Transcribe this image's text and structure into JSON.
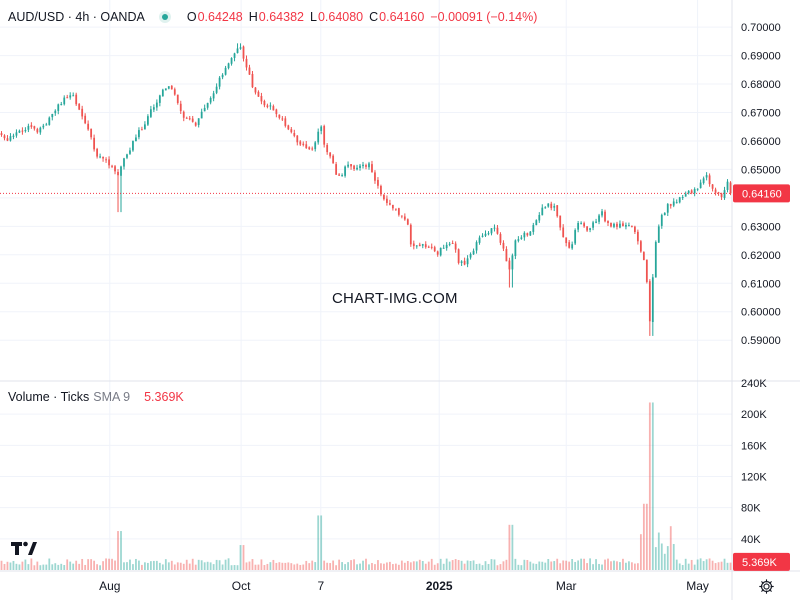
{
  "header": {
    "symbol": "AUD/USD · 4h · OANDA",
    "open_label": "O",
    "open": "0.64248",
    "high_label": "H",
    "high": "0.64382",
    "low_label": "L",
    "low": "0.64080",
    "close_label": "C",
    "close": "0.64160",
    "change": "−0.00091 (−0.14%)"
  },
  "volume_legend": {
    "title": "Volume · Ticks",
    "sma": "SMA 9",
    "value": "5.369K"
  },
  "watermark": "CHART-IMG.COM",
  "colors": {
    "up": "#26a69a",
    "down": "#ef5350",
    "grid": "#f0f3fa",
    "price_tag": "#f23645",
    "accent_text": "#f23645"
  },
  "icons": {
    "logo": "tradingview-logo-icon",
    "settings": "gear-icon"
  },
  "chart_data": [
    {
      "type": "candlestick",
      "title": "AUD/USD · 4h · OANDA",
      "y_ticks": [
        "0.70000",
        "0.69000",
        "0.68000",
        "0.67000",
        "0.66000",
        "0.65000",
        "0.64000",
        "0.63000",
        "0.62000",
        "0.61000",
        "0.60000",
        "0.59000"
      ],
      "ylim": [
        0.5855,
        0.7025
      ],
      "last_price": 0.6416,
      "last_price_label": "0.64160",
      "x_tick_labels": [
        "Aug",
        "Oct",
        "7",
        "2025",
        "Mar",
        "May"
      ],
      "x_tick_dates": [
        "2024-08-01",
        "2024-10-01",
        "2024-11-07",
        "2025-01-01",
        "2025-03-01",
        "2025-05-01"
      ],
      "x_range": [
        "2024-06-11",
        "2025-05-17"
      ],
      "grid": true,
      "path_points": [
        [
          "2024-06-11",
          0.6625
        ],
        [
          "2024-06-14",
          0.6605
        ],
        [
          "2024-06-20",
          0.6635
        ],
        [
          "2024-06-25",
          0.6655
        ],
        [
          "2024-06-28",
          0.663
        ],
        [
          "2024-07-03",
          0.6665
        ],
        [
          "2024-07-08",
          0.6725
        ],
        [
          "2024-07-11",
          0.675
        ],
        [
          "2024-07-15",
          0.676
        ],
        [
          "2024-07-18",
          0.6705
        ],
        [
          "2024-07-22",
          0.664
        ],
        [
          "2024-07-26",
          0.6545
        ],
        [
          "2024-07-30",
          0.6535
        ],
        [
          "2024-08-02",
          0.651
        ],
        [
          "2024-08-05",
          0.6475
        ],
        [
          "2024-08-07",
          0.653
        ],
        [
          "2024-08-10",
          0.656
        ],
        [
          "2024-08-13",
          0.662
        ],
        [
          "2024-08-16",
          0.6645
        ],
        [
          "2024-08-20",
          0.671
        ],
        [
          "2024-08-23",
          0.674
        ],
        [
          "2024-08-27",
          0.679
        ],
        [
          "2024-08-30",
          0.678
        ],
        [
          "2024-09-03",
          0.67
        ],
        [
          "2024-09-06",
          0.6675
        ],
        [
          "2024-09-10",
          0.666
        ],
        [
          "2024-09-13",
          0.671
        ],
        [
          "2024-09-16",
          0.674
        ],
        [
          "2024-09-20",
          0.6805
        ],
        [
          "2024-09-24",
          0.6855
        ],
        [
          "2024-09-27",
          0.69
        ],
        [
          "2024-09-30",
          0.6935
        ],
        [
          "2024-10-03",
          0.688
        ],
        [
          "2024-10-07",
          0.677
        ],
        [
          "2024-10-10",
          0.6745
        ],
        [
          "2024-10-14",
          0.672
        ],
        [
          "2024-10-17",
          0.6705
        ],
        [
          "2024-10-21",
          0.6665
        ],
        [
          "2024-10-24",
          0.6625
        ],
        [
          "2024-10-28",
          0.6595
        ],
        [
          "2024-11-01",
          0.6575
        ],
        [
          "2024-11-04",
          0.658
        ],
        [
          "2024-11-07",
          0.6665
        ],
        [
          "2024-11-08",
          0.6595
        ],
        [
          "2024-11-12",
          0.654
        ],
        [
          "2024-11-15",
          0.647
        ],
        [
          "2024-11-19",
          0.651
        ],
        [
          "2024-11-22",
          0.651
        ],
        [
          "2024-11-26",
          0.651
        ],
        [
          "2024-11-29",
          0.652
        ],
        [
          "2024-12-03",
          0.645
        ],
        [
          "2024-12-06",
          0.64
        ],
        [
          "2024-12-10",
          0.637
        ],
        [
          "2024-12-13",
          0.635
        ],
        [
          "2024-12-17",
          0.632
        ],
        [
          "2024-12-19",
          0.623
        ],
        [
          "2024-12-24",
          0.6235
        ],
        [
          "2024-12-27",
          0.6225
        ],
        [
          "2024-12-31",
          0.6205
        ],
        [
          "2025-01-03",
          0.623
        ],
        [
          "2025-01-07",
          0.625
        ],
        [
          "2025-01-10",
          0.618
        ],
        [
          "2025-01-13",
          0.6165
        ],
        [
          "2025-01-16",
          0.621
        ],
        [
          "2025-01-20",
          0.626
        ],
        [
          "2025-01-23",
          0.6275
        ],
        [
          "2025-01-27",
          0.63
        ],
        [
          "2025-01-30",
          0.6235
        ],
        [
          "2025-02-03",
          0.6145
        ],
        [
          "2025-02-05",
          0.6255
        ],
        [
          "2025-02-10",
          0.627
        ],
        [
          "2025-02-13",
          0.629
        ],
        [
          "2025-02-17",
          0.6355
        ],
        [
          "2025-02-20",
          0.638
        ],
        [
          "2025-02-24",
          0.636
        ],
        [
          "2025-02-27",
          0.628
        ],
        [
          "2025-03-03",
          0.6215
        ],
        [
          "2025-03-06",
          0.632
        ],
        [
          "2025-03-10",
          0.6285
        ],
        [
          "2025-03-13",
          0.63
        ],
        [
          "2025-03-17",
          0.6355
        ],
        [
          "2025-03-20",
          0.631
        ],
        [
          "2025-03-24",
          0.63
        ],
        [
          "2025-03-27",
          0.631
        ],
        [
          "2025-04-01",
          0.63
        ],
        [
          "2025-04-03",
          0.625
        ],
        [
          "2025-04-07",
          0.615
        ],
        [
          "2025-04-09",
          0.595
        ],
        [
          "2025-04-11",
          0.623
        ],
        [
          "2025-04-14",
          0.633
        ],
        [
          "2025-04-17",
          0.637
        ],
        [
          "2025-04-21",
          0.639
        ],
        [
          "2025-04-24",
          0.641
        ],
        [
          "2025-04-28",
          0.642
        ],
        [
          "2025-05-01",
          0.644
        ],
        [
          "2025-05-05",
          0.6475
        ],
        [
          "2025-05-08",
          0.6425
        ],
        [
          "2025-05-12",
          0.6405
        ],
        [
          "2025-05-15",
          0.645
        ],
        [
          "2025-05-17",
          0.6416
        ]
      ],
      "extremes": [
        [
          "2024-08-05",
          0.635
        ],
        [
          "2024-09-30",
          0.6943
        ],
        [
          "2025-04-09",
          0.5915
        ],
        [
          "2025-02-03",
          0.6085
        ]
      ]
    },
    {
      "type": "bar",
      "title": "Volume · Ticks",
      "y_ticks": [
        "240K",
        "200K",
        "160K",
        "120K",
        "80K",
        "40K"
      ],
      "ylim": [
        0,
        240000
      ],
      "last_value_label": "5.369K",
      "spikes": [
        [
          "2024-08-05",
          50000
        ],
        [
          "2024-10-01",
          32000
        ],
        [
          "2024-11-06",
          70000
        ],
        [
          "2025-02-03",
          58000
        ],
        [
          "2025-04-07",
          85000
        ],
        [
          "2025-04-09",
          215000
        ]
      ]
    }
  ]
}
